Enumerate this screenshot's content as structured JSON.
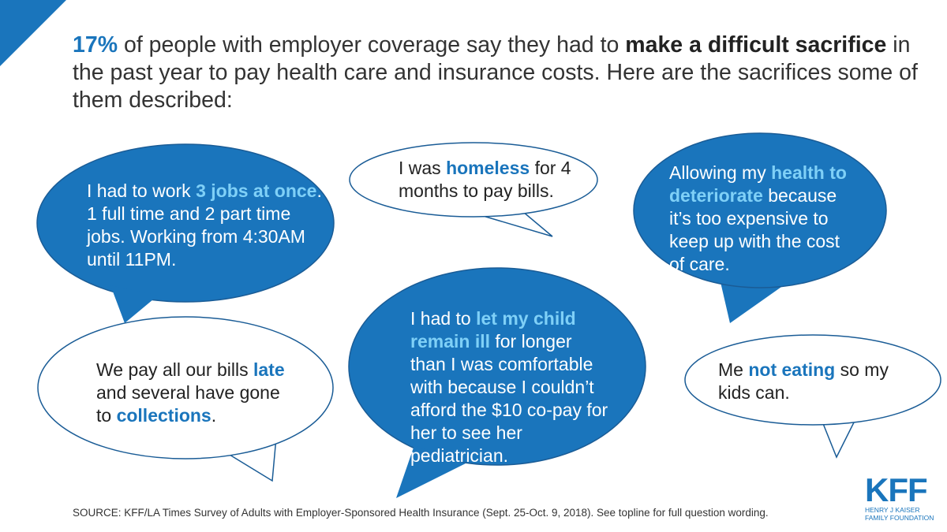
{
  "headline": {
    "stat": "17%",
    "part1": " of people with employer coverage say they had to ",
    "emphasis": "make a difficult sacrifice",
    "part2": " in the past year to pay health care and insurance costs. Here are the sacrifices some of them described:"
  },
  "bubbles": [
    {
      "before": "I had to work ",
      "highlight": "3 jobs at once",
      "after": ". 1 full time and 2 part time jobs. Working from 4:30AM until 11PM."
    },
    {
      "before": "I was ",
      "highlight": "homeless",
      "after": " for 4 months to pay bills."
    },
    {
      "before": "Allowing my ",
      "highlight": "health to deteriorate",
      "after": " because it’s too expensive to keep up with the cost of care."
    },
    {
      "before": "We pay all our bills ",
      "highlight": "late",
      "after": " and several have gone to ",
      "highlight2": "collections",
      "after2": "."
    },
    {
      "before": "I had to ",
      "highlight": "let my child remain ill",
      "after": " for longer than I was comfortable with because I couldn’t afford the $10 co-pay for her to see her pediatrician."
    },
    {
      "before": "Me ",
      "highlight": "not eating",
      "after": " so my kids can."
    }
  ],
  "source": "SOURCE: KFF/LA Times Survey  of Adults with Employer-Sponsored Health Insurance  (Sept. 25-Oct. 9, 2018). See topline for full question wording.",
  "logo": {
    "mark": "KFF",
    "line1": "HENRY J KAISER",
    "line2": "FAMILY FOUNDATION"
  },
  "colors": {
    "blue": "#1a75bc",
    "highlight_on_blue": "#7fd0f7",
    "outline": "#1a5c96"
  }
}
